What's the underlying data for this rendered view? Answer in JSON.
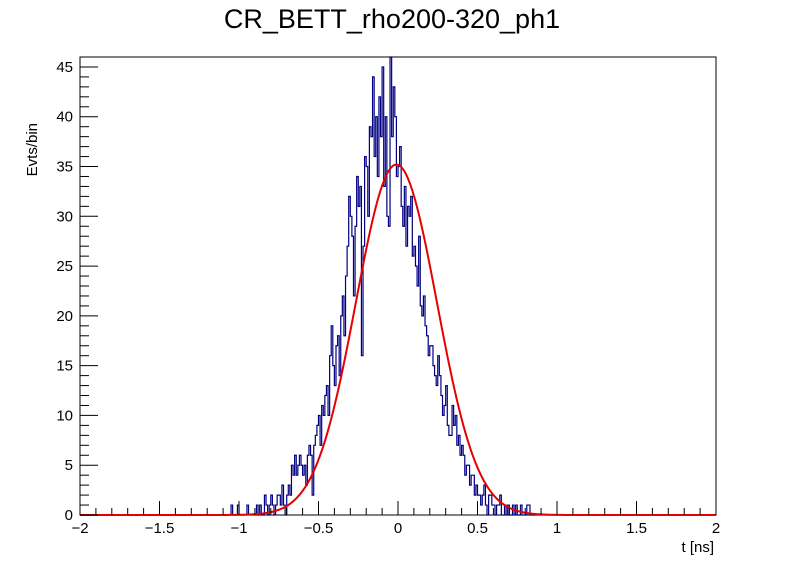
{
  "chart_data": {
    "type": "histogram",
    "title": "CR_BETT_rho200-320_ph1",
    "xlabel": "t [ns]",
    "ylabel": "Evts/bin",
    "xlim": [
      -2,
      2
    ],
    "ylim": [
      0,
      46
    ],
    "x_ticks": [
      "−2",
      "−1.5",
      "−1",
      "−0.5",
      "0",
      "0.5",
      "1",
      "1.5",
      "2"
    ],
    "y_ticks": [
      "0",
      "5",
      "10",
      "15",
      "20",
      "25",
      "30",
      "35",
      "40",
      "45"
    ],
    "grid": false,
    "legend": "none",
    "histogram": {
      "bin_width": 0.01,
      "bin_low_edges": [
        -1.05,
        -1.04,
        -1.03,
        -1.02,
        -1.01,
        -1.0,
        -0.99,
        -0.98,
        -0.97,
        -0.96,
        -0.95,
        -0.94,
        -0.93,
        -0.92,
        -0.91,
        -0.9,
        -0.89,
        -0.88,
        -0.87,
        -0.86,
        -0.85,
        -0.84,
        -0.83,
        -0.82,
        -0.81,
        -0.8,
        -0.79,
        -0.78,
        -0.77,
        -0.76,
        -0.75,
        -0.74,
        -0.73,
        -0.72,
        -0.71,
        -0.7,
        -0.69,
        -0.68,
        -0.67,
        -0.66,
        -0.65,
        -0.64,
        -0.63,
        -0.62,
        -0.61,
        -0.6,
        -0.59,
        -0.58,
        -0.57,
        -0.56,
        -0.55,
        -0.54,
        -0.53,
        -0.52,
        -0.51,
        -0.5,
        -0.49,
        -0.48,
        -0.47,
        -0.46,
        -0.45,
        -0.44,
        -0.43,
        -0.42,
        -0.41,
        -0.4,
        -0.39,
        -0.38,
        -0.37,
        -0.36,
        -0.35,
        -0.34,
        -0.33,
        -0.32,
        -0.31,
        -0.3,
        -0.29,
        -0.28,
        -0.27,
        -0.26,
        -0.25,
        -0.24,
        -0.23,
        -0.22,
        -0.21,
        -0.2,
        -0.19,
        -0.18,
        -0.17,
        -0.16,
        -0.15,
        -0.14,
        -0.13,
        -0.12,
        -0.11,
        -0.1,
        -0.09,
        -0.08,
        -0.07,
        -0.06,
        -0.05,
        -0.04,
        -0.03,
        -0.02,
        -0.01,
        0.0,
        0.01,
        0.02,
        0.03,
        0.04,
        0.05,
        0.06,
        0.07,
        0.08,
        0.09,
        0.1,
        0.11,
        0.12,
        0.13,
        0.14,
        0.15,
        0.16,
        0.17,
        0.18,
        0.19,
        0.2,
        0.21,
        0.22,
        0.23,
        0.24,
        0.25,
        0.26,
        0.27,
        0.28,
        0.29,
        0.3,
        0.31,
        0.32,
        0.33,
        0.34,
        0.35,
        0.36,
        0.37,
        0.38,
        0.39,
        0.4,
        0.41,
        0.42,
        0.43,
        0.44,
        0.45,
        0.46,
        0.47,
        0.48,
        0.49,
        0.5,
        0.51,
        0.52,
        0.53,
        0.54,
        0.55,
        0.56,
        0.57,
        0.58,
        0.59,
        0.6,
        0.61,
        0.62,
        0.63,
        0.64,
        0.65,
        0.66,
        0.67,
        0.68,
        0.69,
        0.7,
        0.71,
        0.72,
        0.73,
        0.74,
        0.75,
        0.76,
        0.77,
        0.78,
        0.79,
        0.8,
        0.81,
        0.82,
        0.83,
        0.84,
        0.85,
        0.86,
        0.87,
        0.88,
        0.89,
        0.9,
        0.91,
        0.92,
        0.93
      ],
      "counts": [
        1,
        0,
        0,
        0,
        1,
        0,
        0,
        0,
        0,
        0,
        1,
        0,
        0,
        0,
        0,
        0,
        1,
        0,
        1,
        0,
        0,
        2,
        1,
        0,
        1,
        2,
        1,
        0,
        1,
        2,
        2,
        1,
        3,
        1,
        0,
        2,
        3,
        2,
        5,
        4,
        6,
        4,
        5,
        6,
        5,
        4,
        5,
        3,
        6,
        7,
        6,
        2,
        7,
        8,
        9,
        10,
        7,
        11,
        10,
        12,
        13,
        10,
        16,
        19,
        15,
        13,
        17,
        18,
        14,
        20,
        22,
        18,
        24,
        27,
        32,
        30,
        28,
        22,
        29,
        34,
        31,
        33,
        16,
        27,
        36,
        35,
        30,
        39,
        38,
        44,
        36,
        40,
        34,
        42,
        38,
        45,
        33,
        40,
        30,
        29,
        46,
        38,
        43,
        40,
        34,
        35,
        37,
        31,
        29,
        33,
        27,
        31,
        30,
        32,
        26,
        27,
        25,
        23,
        28,
        21,
        20,
        22,
        19,
        18,
        16,
        17,
        17,
        15,
        14,
        13,
        16,
        14,
        12,
        10,
        11,
        13,
        9,
        8,
        8,
        11,
        9,
        10,
        7,
        8,
        6,
        7,
        6,
        4,
        5,
        5,
        3,
        4,
        4,
        2,
        3,
        2,
        2,
        1,
        2,
        3,
        1,
        0,
        2,
        2,
        1,
        1,
        0,
        1,
        1,
        2,
        0,
        0,
        1,
        0,
        1,
        0,
        0,
        1,
        0,
        1,
        0,
        0,
        1,
        0,
        0,
        0,
        1,
        1
      ]
    },
    "fit": {
      "function": "gaussian",
      "amplitude": 35.2,
      "mean": -0.01,
      "sigma": 0.255
    },
    "colors": {
      "histogram": "#000080",
      "fit": "#e60000",
      "frame": "#000000"
    }
  }
}
